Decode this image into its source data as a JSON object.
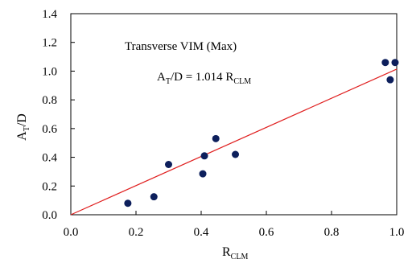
{
  "chart_data": {
    "type": "scatter",
    "title": "",
    "xlabel": "R",
    "xlabel_sub": "CLM",
    "ylabel": "A",
    "ylabel_sub": "T",
    "ylabel_suffix": "/D",
    "xlim": [
      0.0,
      1.0
    ],
    "ylim": [
      0.0,
      1.4
    ],
    "x_ticks": [
      0.0,
      0.2,
      0.4,
      0.6,
      0.8,
      1.0
    ],
    "x_tick_labels": [
      "0.0",
      "0.2",
      "0.4",
      "0.6",
      "0.8",
      "1.0"
    ],
    "y_ticks": [
      0.0,
      0.2,
      0.4,
      0.6,
      0.8,
      1.0,
      1.2,
      1.4
    ],
    "y_tick_labels": [
      "0.0",
      "0.2",
      "0.4",
      "0.6",
      "0.8",
      "1.0",
      "1.2",
      "1.4"
    ],
    "grid": "none",
    "legend": "none",
    "points": [
      {
        "x": 0.175,
        "y": 0.08
      },
      {
        "x": 0.255,
        "y": 0.125
      },
      {
        "x": 0.3,
        "y": 0.35
      },
      {
        "x": 0.405,
        "y": 0.285
      },
      {
        "x": 0.41,
        "y": 0.41
      },
      {
        "x": 0.445,
        "y": 0.53
      },
      {
        "x": 0.505,
        "y": 0.42
      },
      {
        "x": 0.965,
        "y": 1.06
      },
      {
        "x": 0.98,
        "y": 0.94
      },
      {
        "x": 0.995,
        "y": 1.06
      }
    ],
    "fit_line": {
      "slope": 1.014,
      "intercept": 0.0
    },
    "annotations": {
      "label": "Transverse VIM (Max)",
      "equation_a": "A",
      "equation_a_sub": "T",
      "equation_mid": "/D = 1.014 R",
      "equation_r_sub": "CLM"
    },
    "colors": {
      "points": "#0d1f5c",
      "fit_line": "#e02020",
      "axes": "#000000"
    }
  }
}
